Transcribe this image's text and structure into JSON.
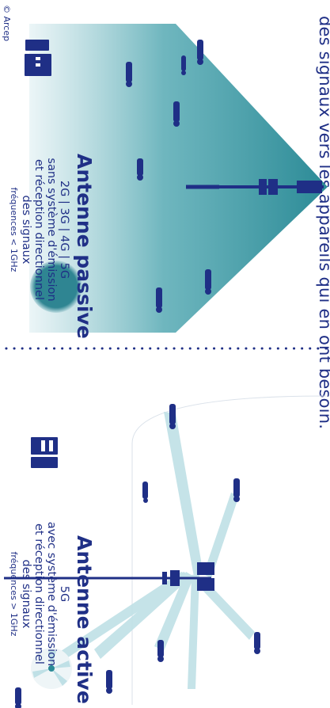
{
  "header_text": "des signaux vers les appareils qui en ont besoin.",
  "passive": {
    "title": "Antenne passive",
    "line1": "2G | 3G | 4G | 5G",
    "line2": "sans système d'émission",
    "line3": "et réception directionnel",
    "line4": "des signaux",
    "freq": "fréquences < 1GHz"
  },
  "active": {
    "title": "Antenne active",
    "line1": "5G",
    "line2": "avec système d'émission",
    "line3": "et réception directionnel",
    "line4": "des signaux",
    "freq": "fréquences > 1GHz"
  },
  "copyright": "© Arcep",
  "colors": {
    "navy": "#1f2f86",
    "teal": "#2b8a96",
    "beam": "#bfe0e6",
    "dot": "#1f2f86"
  },
  "icons": [
    "antenna-tower-icon",
    "antenna-panel-icon",
    "radiation-sphere-icon",
    "beam-fan-icon",
    "person-icon"
  ]
}
